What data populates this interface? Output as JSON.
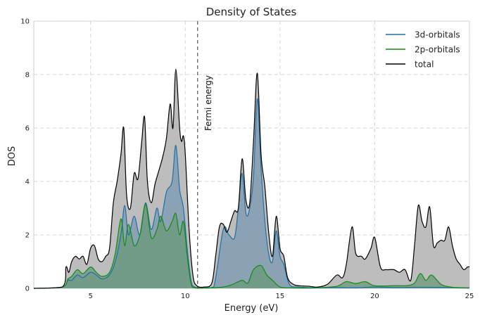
{
  "chart_data": {
    "type": "area",
    "title": "Density of States",
    "xlabel": "Energy (eV)",
    "ylabel": "DOS",
    "xlim": [
      2,
      25
    ],
    "ylim": [
      0,
      10
    ],
    "x_ticks": [
      5,
      10,
      15,
      20,
      25
    ],
    "y_ticks": [
      0,
      2,
      4,
      6,
      8,
      10
    ],
    "grid": true,
    "legend_position": "top-right",
    "fermi_energy": 10.65,
    "fermi_label": "Fermi energy",
    "series": [
      {
        "name": "3d-orbitals",
        "color": "#1f6fa8",
        "fill": "#7a9ab0",
        "filled": true,
        "x": [
          2,
          3.5,
          3.8,
          4.0,
          4.3,
          4.6,
          5.0,
          5.3,
          5.6,
          6.0,
          6.3,
          6.6,
          6.8,
          7.0,
          7.3,
          7.6,
          7.9,
          8.2,
          8.5,
          8.7,
          9.0,
          9.3,
          9.5,
          9.7,
          9.9,
          10.1,
          10.3,
          10.5,
          11.0,
          11.5,
          12.0,
          12.3,
          12.6,
          12.8,
          13.0,
          13.2,
          13.4,
          13.6,
          13.8,
          14.0,
          14.2,
          14.4,
          14.6,
          14.8,
          15.0,
          15.2,
          15.5,
          16.0,
          17.0,
          18.0,
          19.0,
          20.0,
          21.0,
          22.0,
          23.0,
          24.0,
          25.0
        ],
        "values": [
          0,
          0.05,
          0.3,
          0.3,
          0.5,
          0.4,
          0.6,
          0.5,
          0.35,
          0.5,
          1.0,
          2.0,
          3.1,
          2.0,
          2.7,
          2.0,
          3.2,
          2.2,
          3.0,
          2.5,
          3.6,
          4.0,
          5.35,
          3.7,
          3.0,
          1.5,
          0.3,
          0.05,
          0.02,
          0.05,
          2.2,
          2.0,
          1.9,
          3.0,
          4.3,
          2.8,
          3.0,
          4.2,
          7.1,
          4.5,
          2.5,
          1.3,
          1.0,
          2.15,
          1.2,
          0.9,
          0.15,
          0.05,
          0.02,
          0.03,
          0.02,
          0.05,
          0.03,
          0.04,
          0.04,
          0.03,
          0.02
        ]
      },
      {
        "name": "2p-orbitals",
        "color": "#138a13",
        "fill": "#6a9a7a",
        "filled": true,
        "x": [
          2,
          3.5,
          3.8,
          4.0,
          4.3,
          4.6,
          5.0,
          5.3,
          5.6,
          6.0,
          6.3,
          6.6,
          6.8,
          7.0,
          7.3,
          7.6,
          7.9,
          8.2,
          8.5,
          8.7,
          9.0,
          9.3,
          9.5,
          9.7,
          9.9,
          10.1,
          10.3,
          10.5,
          11.0,
          12.0,
          12.5,
          13.0,
          13.3,
          13.6,
          14.0,
          14.3,
          14.6,
          15.0,
          15.5,
          16.0,
          17.0,
          18.0,
          18.5,
          19.0,
          19.5,
          20.0,
          21.0,
          22.0,
          22.4,
          22.7,
          23.0,
          23.5,
          24.0,
          24.5,
          25.0
        ],
        "values": [
          0,
          0.05,
          0.35,
          0.45,
          0.7,
          0.55,
          0.8,
          0.6,
          0.45,
          0.6,
          1.3,
          2.6,
          1.6,
          2.4,
          1.6,
          2.0,
          3.15,
          1.9,
          2.2,
          2.7,
          2.15,
          2.5,
          2.8,
          2.0,
          2.5,
          1.2,
          0.2,
          0.02,
          0.01,
          0.05,
          0.15,
          0.3,
          0.2,
          0.7,
          0.85,
          0.5,
          0.3,
          0.05,
          0.02,
          0.01,
          0.02,
          0.08,
          0.25,
          0.18,
          0.25,
          0.1,
          0.1,
          0.15,
          0.55,
          0.3,
          0.5,
          0.15,
          0.05,
          0.02,
          0.01
        ]
      },
      {
        "name": "total",
        "color": "#000000",
        "fill": "#bdbdbd",
        "filled": true,
        "x": [
          2,
          3.5,
          3.7,
          3.85,
          4.0,
          4.2,
          4.4,
          4.6,
          4.8,
          5.0,
          5.2,
          5.4,
          5.6,
          5.8,
          6.0,
          6.2,
          6.4,
          6.6,
          6.75,
          6.9,
          7.1,
          7.3,
          7.5,
          7.7,
          7.85,
          8.0,
          8.2,
          8.4,
          8.6,
          8.8,
          9.0,
          9.2,
          9.35,
          9.5,
          9.7,
          9.8,
          9.9,
          10.0,
          10.2,
          10.4,
          10.6,
          11.0,
          11.4,
          11.6,
          11.8,
          12.0,
          12.2,
          12.4,
          12.6,
          12.8,
          13.0,
          13.2,
          13.4,
          13.6,
          13.8,
          14.0,
          14.2,
          14.4,
          14.6,
          14.8,
          15.0,
          15.2,
          15.4,
          15.7,
          16.0,
          16.5,
          17.0,
          17.5,
          18.0,
          18.3,
          18.5,
          18.8,
          19.0,
          19.3,
          19.5,
          19.8,
          20.0,
          20.3,
          20.6,
          21.0,
          21.3,
          21.6,
          21.9,
          22.1,
          22.3,
          22.5,
          22.7,
          22.9,
          23.1,
          23.3,
          23.5,
          23.7,
          23.9,
          24.1,
          24.3,
          24.5,
          24.7,
          24.9,
          25.0
        ],
        "values": [
          0,
          0.05,
          0.8,
          0.6,
          1.0,
          1.2,
          1.1,
          1.2,
          0.9,
          1.5,
          1.6,
          1.1,
          1.0,
          1.2,
          1.5,
          3.2,
          4.0,
          5.0,
          6.0,
          3.5,
          3.0,
          4.3,
          4.1,
          5.5,
          6.4,
          4.0,
          3.2,
          3.9,
          4.4,
          4.9,
          5.6,
          6.9,
          6.0,
          8.2,
          6.0,
          5.5,
          5.7,
          5.0,
          2.2,
          0.5,
          0.1,
          0.05,
          0.2,
          1.2,
          2.3,
          2.4,
          2.1,
          2.5,
          2.9,
          3.0,
          4.85,
          3.3,
          3.2,
          5.5,
          8.05,
          5.0,
          3.8,
          2.1,
          1.2,
          2.7,
          1.5,
          1.2,
          0.4,
          0.15,
          0.1,
          0.08,
          0.05,
          0.15,
          0.5,
          0.4,
          0.9,
          2.3,
          1.3,
          1.2,
          1.1,
          1.5,
          1.9,
          0.8,
          0.7,
          0.7,
          0.6,
          0.7,
          0.3,
          1.6,
          3.1,
          2.5,
          2.3,
          3.05,
          1.6,
          1.7,
          1.8,
          1.8,
          2.3,
          1.6,
          1.1,
          0.9,
          0.7,
          0.8,
          0.8
        ]
      }
    ]
  }
}
